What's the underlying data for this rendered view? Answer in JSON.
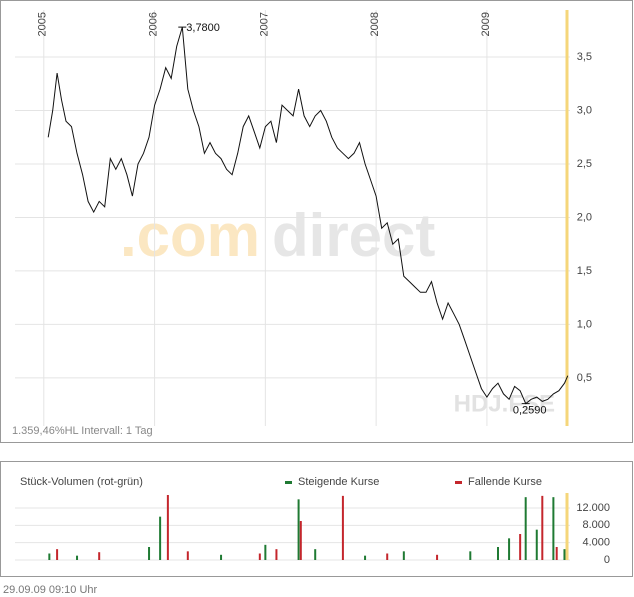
{
  "chart_data": [
    {
      "type": "line",
      "note": "1.359,46%HL  Intervall: 1 Tag",
      "brand": {
        "prefix": ".com",
        "suffix": "direct"
      },
      "symbol": "HDJ.FSE",
      "color": "#111111",
      "x": [
        2005.04,
        2005.08,
        2005.12,
        2005.16,
        2005.2,
        2005.25,
        2005.3,
        2005.35,
        2005.4,
        2005.45,
        2005.5,
        2005.55,
        2005.6,
        2005.65,
        2005.7,
        2005.75,
        2005.8,
        2005.85,
        2005.9,
        2005.95,
        2006.0,
        2006.05,
        2006.1,
        2006.15,
        2006.2,
        2006.25,
        2006.3,
        2006.35,
        2006.4,
        2006.45,
        2006.5,
        2006.55,
        2006.6,
        2006.65,
        2006.7,
        2006.75,
        2006.8,
        2006.85,
        2006.9,
        2006.95,
        2007.0,
        2007.05,
        2007.1,
        2007.15,
        2007.2,
        2007.25,
        2007.3,
        2007.35,
        2007.4,
        2007.45,
        2007.5,
        2007.55,
        2007.6,
        2007.65,
        2007.7,
        2007.75,
        2007.8,
        2007.85,
        2007.9,
        2007.95,
        2008.0,
        2008.05,
        2008.1,
        2008.15,
        2008.2,
        2008.25,
        2008.3,
        2008.35,
        2008.4,
        2008.45,
        2008.5,
        2008.55,
        2008.6,
        2008.65,
        2008.7,
        2008.75,
        2008.8,
        2008.85,
        2008.9,
        2008.95,
        2009.0,
        2009.05,
        2009.1,
        2009.15,
        2009.2,
        2009.25,
        2009.3,
        2009.35,
        2009.4,
        2009.45,
        2009.5,
        2009.55,
        2009.6,
        2009.65,
        2009.7,
        2009.73
      ],
      "values": [
        2.75,
        3.0,
        3.35,
        3.1,
        2.9,
        2.85,
        2.6,
        2.4,
        2.15,
        2.05,
        2.15,
        2.1,
        2.55,
        2.45,
        2.55,
        2.4,
        2.2,
        2.5,
        2.6,
        2.75,
        3.05,
        3.2,
        3.4,
        3.3,
        3.6,
        3.78,
        3.2,
        3.0,
        2.85,
        2.6,
        2.7,
        2.6,
        2.55,
        2.45,
        2.4,
        2.6,
        2.85,
        2.95,
        2.8,
        2.65,
        2.85,
        2.9,
        2.7,
        3.05,
        3.0,
        2.95,
        3.2,
        2.95,
        2.85,
        2.95,
        3.0,
        2.9,
        2.75,
        2.65,
        2.6,
        2.55,
        2.6,
        2.7,
        2.5,
        2.35,
        2.2,
        1.9,
        1.95,
        1.75,
        1.8,
        1.45,
        1.4,
        1.35,
        1.3,
        1.3,
        1.4,
        1.2,
        1.05,
        1.2,
        1.1,
        1.0,
        0.85,
        0.7,
        0.55,
        0.4,
        0.32,
        0.4,
        0.45,
        0.35,
        0.3,
        0.42,
        0.38,
        0.259,
        0.3,
        0.32,
        0.28,
        0.3,
        0.35,
        0.38,
        0.45,
        0.52
      ],
      "annotations": [
        {
          "text": "3,7800",
          "x": 2006.25,
          "y": 3.78
        },
        {
          "text": "0,2590",
          "x": 2009.35,
          "y": 0.259
        }
      ],
      "xlim": [
        2004.74,
        2009.75
      ],
      "xticks": [
        2005,
        2006,
        2007,
        2008,
        2009
      ],
      "ylim": [
        0.05,
        3.94
      ],
      "yticks": [
        {
          "value": 0.5,
          "label": "0,5"
        },
        {
          "value": 1.0,
          "label": "1,0"
        },
        {
          "value": 1.5,
          "label": "1,5"
        },
        {
          "value": 2.0,
          "label": "2,0"
        },
        {
          "value": 2.5,
          "label": "2,5"
        },
        {
          "value": 3.0,
          "label": "3,0"
        },
        {
          "value": 3.5,
          "label": "3,5"
        }
      ],
      "grid": true
    },
    {
      "type": "bar",
      "title": "Stück-Volumen (rot-grün)",
      "date": "29.09.09   09:10 Uhr",
      "x": [
        2005.05,
        2005.12,
        2005.3,
        2005.5,
        2005.95,
        2006.05,
        2006.12,
        2006.3,
        2006.6,
        2006.95,
        2007.0,
        2007.1,
        2007.3,
        2007.32,
        2007.45,
        2007.7,
        2007.9,
        2008.1,
        2008.25,
        2008.55,
        2008.85,
        2009.1,
        2009.2,
        2009.3,
        2009.35,
        2009.45,
        2009.5,
        2009.6,
        2009.63,
        2009.7
      ],
      "series": [
        {
          "name": "Steigende Kurse",
          "color": "#1f7a33",
          "values": [
            1500,
            null,
            1000,
            null,
            3000,
            10000,
            null,
            null,
            1200,
            null,
            3500,
            null,
            14000,
            null,
            2500,
            null,
            1000,
            null,
            2000,
            null,
            2000,
            3000,
            5000,
            null,
            14500,
            7000,
            null,
            14500,
            null,
            2500
          ]
        },
        {
          "name": "Fallende Kurse",
          "color": "#c4262c",
          "values": [
            null,
            2500,
            null,
            1800,
            null,
            null,
            15000,
            2000,
            null,
            1500,
            null,
            2500,
            null,
            9000,
            null,
            14800,
            null,
            1500,
            null,
            1200,
            null,
            null,
            null,
            6000,
            null,
            null,
            14800,
            null,
            3000,
            null
          ]
        }
      ],
      "xlim": [
        2004.74,
        2009.75
      ],
      "ylim": [
        0,
        15000
      ],
      "yticks": [
        0,
        {
          "value": 4000,
          "label": "4.000"
        },
        {
          "value": 8000,
          "label": "8.000"
        },
        {
          "value": 12000,
          "label": "12.000"
        }
      ],
      "grid": true
    }
  ]
}
